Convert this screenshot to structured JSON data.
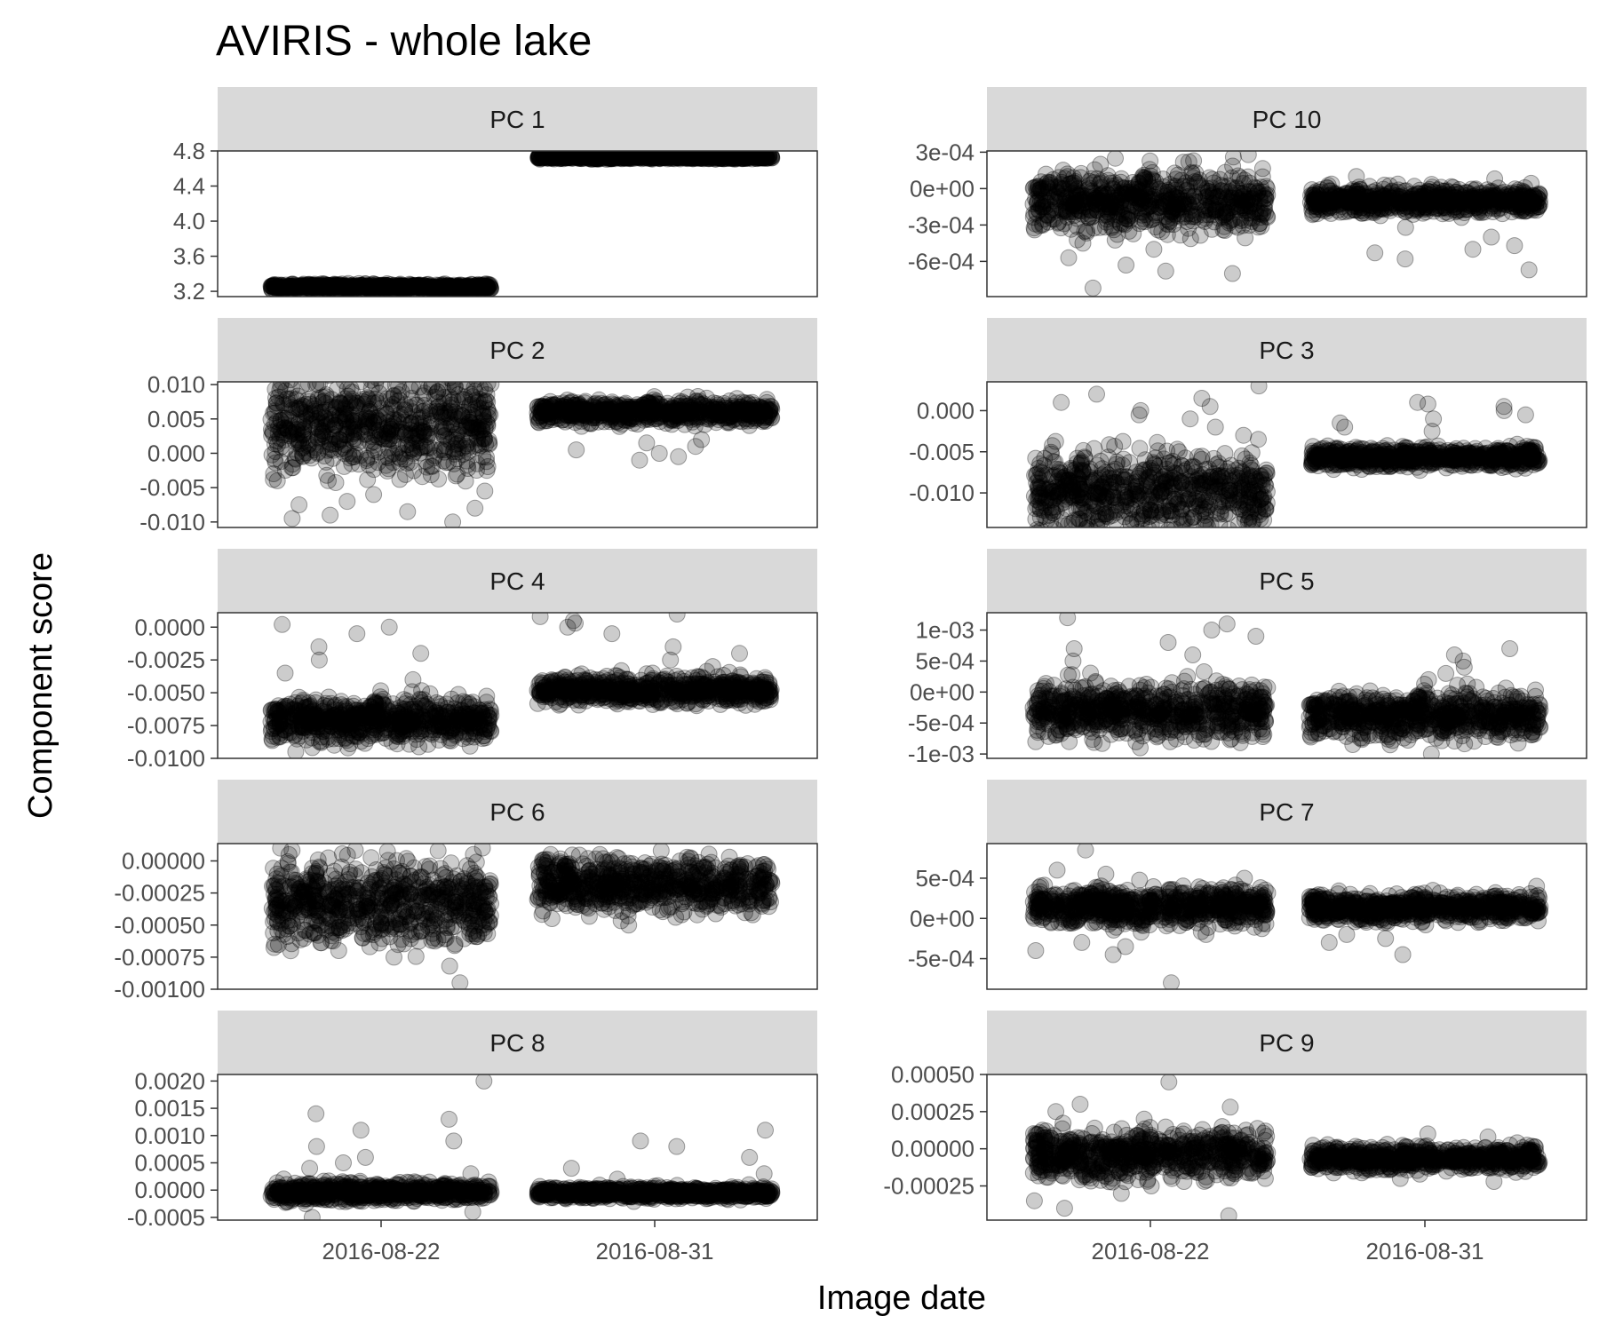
{
  "chart_data": {
    "type": "scatter",
    "title": "AVIRIS - whole lake",
    "xlabel": "Image date",
    "ylabel": "Component score",
    "x_categories": [
      "2016-08-22",
      "2016-08-31"
    ],
    "x_tick_labels": [
      "2016-08-22",
      "2016-08-31"
    ],
    "point_color": "#000000",
    "point_alpha": 0.2,
    "panel_strip_color": "#d9d9d9",
    "panel_border_color": "#333333",
    "grid": false,
    "layout": "5 rows x 2 columns facet grid",
    "panels": [
      {
        "label": "PC 1",
        "y_ticks": [
          3.2,
          3.6,
          4.0,
          4.4,
          4.8
        ],
        "y_tick_labels": [
          "3.2",
          "3.6",
          "4.0",
          "4.4",
          "4.8"
        ],
        "ylim": [
          3.14,
          4.8
        ],
        "groups": [
          {
            "x": "2016-08-22",
            "center": 3.25,
            "core_spread": 0.015,
            "outliers": []
          },
          {
            "x": "2016-08-31",
            "center": 4.73,
            "core_spread": 0.01,
            "outliers": []
          }
        ]
      },
      {
        "label": "PC 10",
        "y_ticks": [
          0.0003,
          0,
          -0.0003,
          -0.0006
        ],
        "y_tick_labels": [
          "3e-04",
          "0e+00",
          "-3e-04",
          "-6e-04"
        ],
        "ylim": [
          -0.00089,
          0.00031
        ],
        "groups": [
          {
            "x": "2016-08-22",
            "center": -0.00011,
            "core_spread": 0.00012,
            "outliers": [
              0.00028,
              0.00026,
              0.00025,
              0.00022,
              0.0002,
              -0.00045,
              -0.0005,
              -0.00057,
              -0.00063,
              -0.00068,
              -0.0007,
              -0.00082
            ]
          },
          {
            "x": "2016-08-31",
            "center": -0.0001,
            "core_spread": 5e-05,
            "outliers": [
              0.0001,
              8e-05,
              -0.00032,
              -0.0004,
              -0.00047,
              -0.0005,
              -0.00053,
              -0.00058,
              -0.00067
            ]
          }
        ]
      },
      {
        "label": "PC 2",
        "y_ticks": [
          0.01,
          0.005,
          0,
          -0.005,
          -0.01
        ],
        "y_tick_labels": [
          "0.010",
          "0.005",
          "0.000",
          "-0.005",
          "-0.010"
        ],
        "ylim": [
          -0.0108,
          0.0104
        ],
        "groups": [
          {
            "x": "2016-08-22",
            "center": 0.0045,
            "core_spread": 0.0035,
            "outliers": [
              -0.004,
              -0.0055,
              -0.006,
              -0.007,
              -0.0075,
              -0.008,
              -0.0085,
              -0.009,
              -0.0095,
              -0.01
            ]
          },
          {
            "x": "2016-08-31",
            "center": 0.006,
            "core_spread": 0.0008,
            "outliers": [
              0.002,
              0.0015,
              0.001,
              0.0005,
              0,
              -0.0005,
              -0.001
            ]
          }
        ]
      },
      {
        "label": "PC 3",
        "y_ticks": [
          0,
          -0.005,
          -0.01
        ],
        "y_tick_labels": [
          "0.000",
          "-0.005",
          "-0.010"
        ],
        "ylim": [
          -0.0142,
          0.0035
        ],
        "groups": [
          {
            "x": "2016-08-22",
            "center": -0.0098,
            "core_spread": 0.0022,
            "outliers": [
              0.003,
              0.002,
              0.0015,
              0.001,
              0.0005,
              0,
              -0.0005,
              -0.001,
              -0.002,
              -0.003
            ]
          },
          {
            "x": "2016-08-31",
            "center": -0.0056,
            "core_spread": 0.0006,
            "outliers": [
              0.001,
              0.0008,
              0.0005,
              0,
              -0.0005,
              -0.001,
              -0.0015,
              -0.002,
              -0.0025
            ]
          }
        ]
      },
      {
        "label": "PC 4",
        "y_ticks": [
          0,
          -0.0025,
          -0.005,
          -0.0075,
          -0.01
        ],
        "y_tick_labels": [
          "0.0000",
          "-0.0025",
          "-0.0050",
          "-0.0075",
          "-0.0100"
        ],
        "ylim": [
          -0.01,
          0.0011
        ],
        "groups": [
          {
            "x": "2016-08-22",
            "center": -0.0071,
            "core_spread": 0.0008,
            "outliers": [
              0.0002,
              0,
              -0.0005,
              -0.0015,
              -0.002,
              -0.0025,
              -0.0035,
              -0.004,
              -0.009,
              -0.0095
            ]
          },
          {
            "x": "2016-08-31",
            "center": -0.0048,
            "core_spread": 0.0005,
            "outliers": [
              0.001,
              0.0008,
              0.0005,
              0.0003,
              0,
              -0.0005,
              -0.0015,
              -0.002,
              -0.0025,
              -0.003,
              -0.0035
            ]
          }
        ]
      },
      {
        "label": "PC 5",
        "y_ticks": [
          0.001,
          0.0005,
          0,
          -0.0005,
          -0.001
        ],
        "y_tick_labels": [
          "1e-03",
          "5e-04",
          "0e+00",
          "-5e-04",
          "-1e-03"
        ],
        "ylim": [
          -0.00107,
          0.00128
        ],
        "groups": [
          {
            "x": "2016-08-22",
            "center": -0.00028,
            "core_spread": 0.00022,
            "outliers": [
              0.0012,
              0.0011,
              0.001,
              0.0009,
              0.0008,
              0.0007,
              0.0006,
              0.0005,
              -0.0008,
              -0.0009
            ]
          },
          {
            "x": "2016-08-31",
            "center": -0.00038,
            "core_spread": 0.00018,
            "outliers": [
              0.0007,
              0.0006,
              0.0005,
              0.0004,
              0.0003,
              0.0002,
              -0.001
            ]
          }
        ]
      },
      {
        "label": "PC 6",
        "y_ticks": [
          0,
          -0.00025,
          -0.0005,
          -0.00075,
          -0.001
        ],
        "y_tick_labels": [
          "0.00000",
          "-0.00025",
          "-0.00050",
          "-0.00075",
          "-0.00100"
        ],
        "ylim": [
          -0.001,
          0.000135
        ],
        "groups": [
          {
            "x": "2016-08-22",
            "center": -0.00033,
            "core_spread": 0.00015,
            "outliers": [
              0.0001,
              8e-05,
              5e-05,
              -0.0007,
              -0.00075,
              -0.00082,
              -0.00095
            ]
          },
          {
            "x": "2016-08-31",
            "center": -0.00018,
            "core_spread": 0.0001,
            "outliers": [
              8e-05,
              5e-05,
              3e-05,
              -0.00045,
              -0.0005
            ]
          }
        ]
      },
      {
        "label": "PC 7",
        "y_ticks": [
          0.0005,
          0,
          -0.0005
        ],
        "y_tick_labels": [
          "5e-04",
          "0e+00",
          "-5e-04"
        ],
        "ylim": [
          -0.00088,
          0.00093
        ],
        "groups": [
          {
            "x": "2016-08-22",
            "center": 0.00015,
            "core_spread": 0.00012,
            "outliers": [
              0.00085,
              0.0006,
              0.00055,
              0.0005,
              -0.0002,
              -0.0003,
              -0.00035,
              -0.0004,
              -0.00045,
              -0.0008
            ]
          },
          {
            "x": "2016-08-31",
            "center": 0.00013,
            "core_spread": 8e-05,
            "outliers": [
              0.0004,
              0.00035,
              0.0003,
              -0.0002,
              -0.00025,
              -0.0003,
              -0.00045
            ]
          }
        ]
      },
      {
        "label": "PC 8",
        "y_ticks": [
          0.002,
          0.0015,
          0.001,
          0.0005,
          0,
          -0.0005
        ],
        "y_tick_labels": [
          "0.0020",
          "0.0015",
          "0.0010",
          "0.0005",
          "0.0000",
          "-0.0005"
        ],
        "ylim": [
          -0.00055,
          0.00212
        ],
        "groups": [
          {
            "x": "2016-08-22",
            "center": -3e-05,
            "core_spread": 8e-05,
            "outliers": [
              0.002,
              0.0014,
              0.0013,
              0.0011,
              0.0009,
              0.0008,
              0.0006,
              0.0005,
              0.0004,
              0.0003,
              -0.0004,
              -0.0005
            ]
          },
          {
            "x": "2016-08-31",
            "center": -5e-05,
            "core_spread": 5e-05,
            "outliers": [
              0.0011,
              0.0009,
              0.0008,
              0.0006,
              0.0004,
              0.0003,
              0.0002
            ]
          }
        ]
      },
      {
        "label": "PC 9",
        "y_ticks": [
          0.0005,
          0.00025,
          0,
          -0.00025
        ],
        "y_tick_labels": [
          "0.00050",
          "0.00025",
          "0.00000",
          "-0.00025"
        ],
        "ylim": [
          -0.00048,
          0.0005
        ],
        "groups": [
          {
            "x": "2016-08-22",
            "center": -4e-05,
            "core_spread": 8e-05,
            "outliers": [
              0.00045,
              0.0003,
              0.00028,
              0.00025,
              0.0002,
              -0.0003,
              -0.00035,
              -0.0004,
              -0.00045
            ]
          },
          {
            "x": "2016-08-31",
            "center": -6e-05,
            "core_spread": 4e-05,
            "outliers": [
              0.0001,
              8e-05,
              -0.0002,
              -0.00022
            ]
          }
        ]
      }
    ]
  }
}
